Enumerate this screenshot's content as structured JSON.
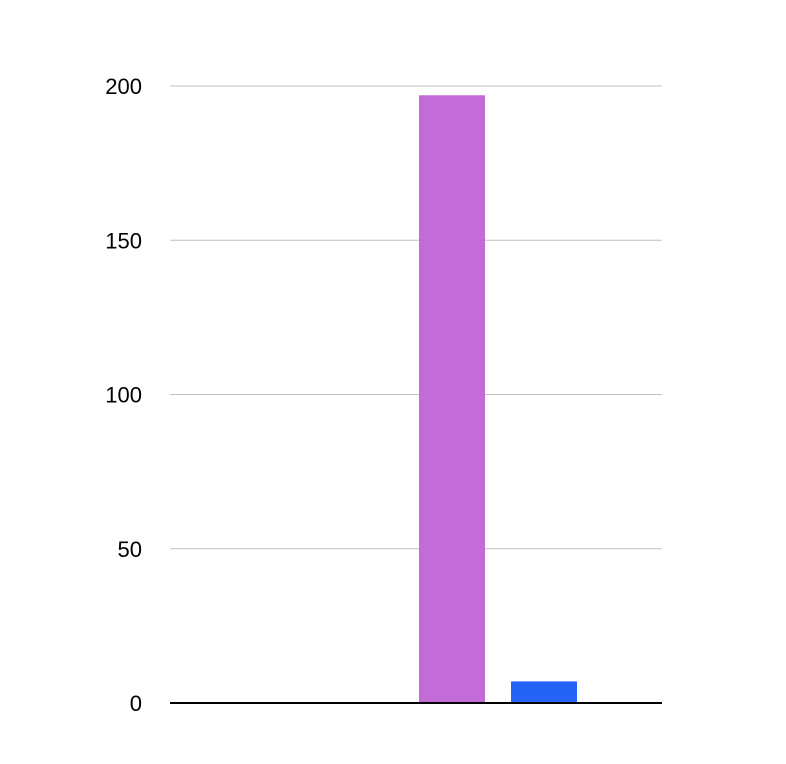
{
  "chart_data": {
    "type": "bar",
    "title": "",
    "xlabel": "",
    "ylabel": "",
    "ylim": [
      0,
      200
    ],
    "yticks": [
      0,
      50,
      100,
      150,
      200
    ],
    "ytick_labels": [
      "0",
      "50",
      "100",
      "150",
      "200"
    ],
    "grid": true,
    "legend": "none",
    "bars": [
      {
        "value": 197,
        "color": "#c36bd6"
      },
      {
        "value": 7,
        "color": "#2563f6"
      }
    ]
  }
}
